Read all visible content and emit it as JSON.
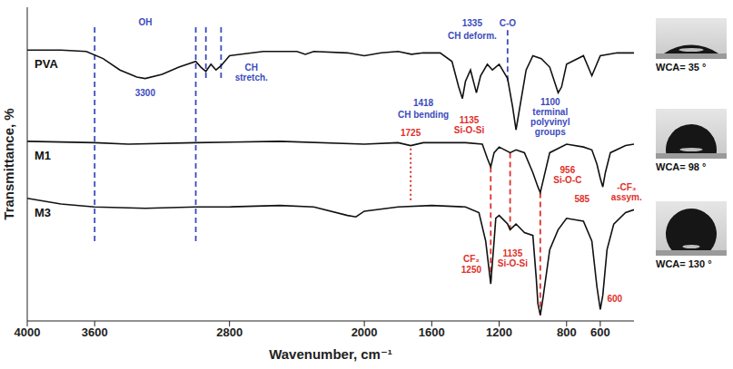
{
  "chart_data": {
    "type": "line",
    "x_label": "Wavenumber, cm⁻¹",
    "y_label": "Transmittance, %",
    "xlim": [
      4000,
      400
    ],
    "xticks": [
      4000,
      3600,
      2800,
      2000,
      1600,
      1200,
      800,
      600
    ],
    "ylim": [
      0,
      110
    ],
    "tick_labels": "x",
    "grid": false,
    "series": [
      {
        "name": "PVA",
        "color": "#111111",
        "x": [
          4000,
          3800,
          3650,
          3550,
          3450,
          3350,
          3300,
          3200,
          3100,
          3000,
          2970,
          2940,
          2910,
          2880,
          2850,
          2800,
          2600,
          2400,
          2350,
          2300,
          2100,
          2000,
          1900,
          1800,
          1720,
          1650,
          1550,
          1480,
          1440,
          1418,
          1400,
          1370,
          1335,
          1310,
          1270,
          1240,
          1200,
          1150,
          1120,
          1100,
          1080,
          1040,
          1000,
          950,
          900,
          850,
          830,
          800,
          700,
          650,
          600,
          500,
          400
        ],
        "values": [
          95,
          95,
          94.5,
          92,
          88,
          85.5,
          85,
          86.5,
          89,
          91,
          89,
          87.5,
          90,
          88,
          89.5,
          93,
          94.5,
          94.5,
          93.5,
          94.5,
          94,
          93,
          94,
          94.5,
          93.5,
          94,
          94,
          91,
          82,
          78,
          84,
          88,
          80,
          86,
          90,
          88,
          90,
          85,
          75,
          67,
          74,
          88,
          93,
          92,
          89,
          80,
          82,
          90,
          93,
          86,
          93,
          94,
          94
        ]
      },
      {
        "name": "M1",
        "color": "#111111",
        "x": [
          4000,
          3600,
          3400,
          3000,
          2500,
          2000,
          1800,
          1725,
          1650,
          1400,
          1300,
          1270,
          1250,
          1230,
          1200,
          1135,
          1100,
          1050,
          1000,
          970,
          956,
          940,
          900,
          800,
          700,
          650,
          620,
          600,
          585,
          570,
          540,
          450,
          400
        ],
        "values": [
          63,
          62.5,
          62,
          62.5,
          63,
          62,
          62.5,
          61.5,
          62.5,
          62.5,
          62,
          57,
          54,
          59,
          61,
          59,
          60,
          59,
          52,
          47,
          45,
          49,
          59,
          62,
          61,
          60,
          55,
          50,
          47,
          52,
          59,
          61.5,
          62
        ]
      },
      {
        "name": "M3",
        "color": "#111111",
        "x": [
          4000,
          3800,
          3600,
          3300,
          3000,
          2800,
          2500,
          2300,
          2100,
          2050,
          2000,
          1800,
          1600,
          1400,
          1320,
          1280,
          1250,
          1230,
          1220,
          1200,
          1150,
          1135,
          1100,
          1050,
          1000,
          980,
          970,
          956,
          940,
          900,
          850,
          800,
          700,
          650,
          620,
          600,
          585,
          560,
          520,
          450,
          400
        ],
        "values": [
          43,
          41,
          40,
          39.5,
          40,
          40,
          40.5,
          40,
          37,
          36.5,
          38.5,
          40,
          40.5,
          40,
          38,
          28,
          13,
          28,
          36,
          37,
          34,
          32,
          34,
          31,
          30,
          15,
          6,
          2,
          8,
          25,
          32,
          36,
          35,
          28,
          12,
          4,
          9,
          25,
          34,
          38,
          39
        ]
      }
    ],
    "reference_lines": [
      {
        "x": 3600,
        "y_from": 103,
        "y_to": 28,
        "color": "#3b4bbd",
        "line_style": "dashed"
      },
      {
        "x": 3000,
        "y_from": 103,
        "y_to": 28,
        "color": "#3b4bbd",
        "line_style": "dashed"
      },
      {
        "x": 2940,
        "y_from": 103,
        "y_to": 85,
        "color": "#3b4bbd",
        "line_style": "dashed"
      },
      {
        "x": 2850,
        "y_from": 103,
        "y_to": 85,
        "color": "#3b4bbd",
        "line_style": "dashed"
      },
      {
        "x": 1150,
        "y_from": 102,
        "y_to": 84,
        "color": "#3b4bbd",
        "line_style": "dashed"
      },
      {
        "x": 1725,
        "y_from": 60.5,
        "y_to": 41.5,
        "color": "#e0302a",
        "line_style": "dotted"
      },
      {
        "x": 1250,
        "y_from": 54,
        "y_to": 13,
        "color": "#e0302a",
        "line_style": "dashed"
      },
      {
        "x": 1135,
        "y_from": 59,
        "y_to": 32,
        "color": "#e0302a",
        "line_style": "dashed"
      },
      {
        "x": 956,
        "y_from": 45,
        "y_to": 2,
        "color": "#e0302a",
        "line_style": "dashed"
      }
    ],
    "annotations": [
      {
        "text": "OH",
        "x": 3300,
        "y": 105,
        "color": "#3b4bbd"
      },
      {
        "text": "3300",
        "x": 3300,
        "y": 80,
        "color": "#3b4bbd"
      },
      {
        "text": "CH stretch.",
        "x": 2670,
        "y": 89,
        "color": "#3b4bbd"
      },
      {
        "text": "1418",
        "x": 1650,
        "y": 76.5,
        "color": "#3b4bbd"
      },
      {
        "text": "CH bending",
        "x": 1650,
        "y": 72.5,
        "color": "#3b4bbd"
      },
      {
        "text": "1335",
        "x": 1360,
        "y": 104.5,
        "color": "#3b4bbd"
      },
      {
        "text": "CH deform.",
        "x": 1360,
        "y": 100,
        "color": "#3b4bbd"
      },
      {
        "text": "C-O",
        "x": 1150,
        "y": 104.5,
        "color": "#3b4bbd"
      },
      {
        "text": "1100",
        "x": 897,
        "y": 77,
        "color": "#3b4bbd"
      },
      {
        "text": "terminal polyvinyl groups",
        "x": 897,
        "y": 73.5,
        "color": "#3b4bbd"
      },
      {
        "text": "1725",
        "x": 1725,
        "y": 66,
        "color": "#e0302a"
      },
      {
        "text": "1135",
        "x": 1378,
        "y": 70.5,
        "color": "#e0302a"
      },
      {
        "text": "Si-O-Si",
        "x": 1378,
        "y": 67,
        "color": "#e0302a"
      },
      {
        "text": "956",
        "x": 794,
        "y": 53,
        "color": "#e0302a"
      },
      {
        "text": "Si-O-C",
        "x": 794,
        "y": 49.5,
        "color": "#e0302a"
      },
      {
        "text": "585",
        "x": 708,
        "y": 43,
        "color": "#e0302a"
      },
      {
        "text": "CF₂",
        "x": 1365,
        "y": 22,
        "color": "#e0302a"
      },
      {
        "text": "1250",
        "x": 1365,
        "y": 18,
        "color": "#e0302a"
      },
      {
        "text": "1135",
        "x": 1120,
        "y": 24,
        "color": "#e0302a"
      },
      {
        "text": "Si-O-Si",
        "x": 1120,
        "y": 20.5,
        "color": "#e0302a"
      },
      {
        "text": "-CF₃ assym.",
        "x": 444,
        "y": 47,
        "color": "#e0302a"
      },
      {
        "text": "600",
        "x": 514,
        "y": 8,
        "color": "#e0302a"
      }
    ],
    "contact_angles": [
      {
        "series": "PVA",
        "label": "WCA= 35 °",
        "value": 35
      },
      {
        "series": "M1",
        "label": "WCA= 98 °",
        "value": 98
      },
      {
        "series": "M3",
        "label": "WCA= 130 °",
        "value": 130
      }
    ]
  }
}
